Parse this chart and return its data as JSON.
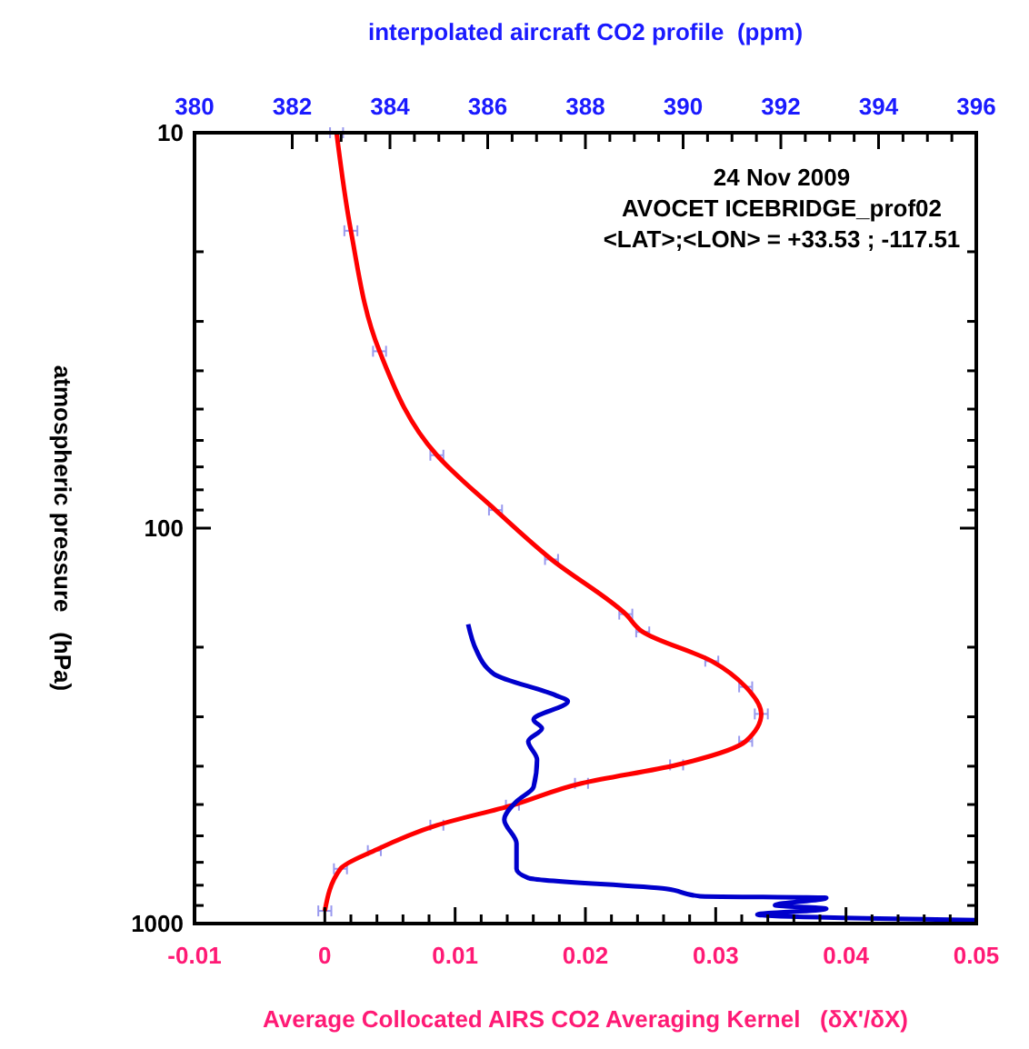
{
  "chart_data": {
    "type": "line",
    "xlabel": "Average Collocated AIRS CO2 Averaging Kernel   (δX'/δX)",
    "x2label": "interpolated aircraft CO2 profile  (ppm)",
    "ylabel": "atmospheric pressure   (hPa)",
    "annotations": [
      "24 Nov 2009",
      "AVOCET ICEBRIDGE_prof02",
      "<LAT>;<LON> = +33.53 ; -117.51"
    ],
    "log": "y",
    "grid": false,
    "line_style": "solid",
    "xlim": [
      -0.01,
      0.05
    ],
    "xticks": [
      -0.01,
      0,
      0.01,
      0.02,
      0.03,
      0.04,
      0.05,
      {
        "value": 0.002,
        "label": null
      },
      {
        "value": 0.004,
        "label": null
      },
      {
        "value": 0.006,
        "label": null
      },
      {
        "value": 0.008,
        "label": null
      },
      {
        "value": 0.012,
        "label": null
      },
      {
        "value": 0.014,
        "label": null
      },
      {
        "value": 0.016,
        "label": null
      },
      {
        "value": 0.018,
        "label": null
      },
      {
        "value": 0.022,
        "label": null
      },
      {
        "value": 0.024,
        "label": null
      },
      {
        "value": 0.026,
        "label": null
      },
      {
        "value": 0.028,
        "label": null
      },
      {
        "value": 0.032,
        "label": null
      },
      {
        "value": 0.034,
        "label": null
      },
      {
        "value": 0.036,
        "label": null
      },
      {
        "value": 0.038,
        "label": null
      },
      {
        "value": 0.042,
        "label": null
      },
      {
        "value": 0.044,
        "label": null
      },
      {
        "value": 0.046,
        "label": null
      },
      {
        "value": 0.048,
        "label": null
      }
    ],
    "x2lim": [
      380,
      396
    ],
    "x2ticks": [
      380,
      382,
      384,
      386,
      388,
      390,
      392,
      394,
      396,
      {
        "value": 382.5,
        "label": null
      },
      {
        "value": 383,
        "label": null
      },
      {
        "value": 383.5,
        "label": null
      },
      {
        "value": 384.5,
        "label": null
      },
      {
        "value": 385,
        "label": null
      },
      {
        "value": 385.5,
        "label": null
      },
      {
        "value": 386.5,
        "label": null
      },
      {
        "value": 387,
        "label": null
      },
      {
        "value": 387.5,
        "label": null
      },
      {
        "value": 388.5,
        "label": null
      },
      {
        "value": 389,
        "label": null
      },
      {
        "value": 389.5,
        "label": null
      },
      {
        "value": 390.5,
        "label": null
      },
      {
        "value": 391,
        "label": null
      },
      {
        "value": 391.5,
        "label": null
      },
      {
        "value": 392.5,
        "label": null
      },
      {
        "value": 393,
        "label": null
      },
      {
        "value": 393.5,
        "label": null
      },
      {
        "value": 394.5,
        "label": null
      },
      {
        "value": 395,
        "label": null
      },
      {
        "value": 395.5,
        "label": null
      }
    ],
    "ylim": [
      1000,
      10
    ],
    "yticks": [
      10,
      100,
      1000,
      {
        "value": 20,
        "label": null
      },
      {
        "value": 30,
        "label": null
      },
      {
        "value": 40,
        "label": null
      },
      {
        "value": 50,
        "label": null
      },
      {
        "value": 60,
        "label": null
      },
      {
        "value": 70,
        "label": null
      },
      {
        "value": 80,
        "label": null
      },
      {
        "value": 90,
        "label": null
      },
      {
        "value": 200,
        "label": null
      },
      {
        "value": 300,
        "label": null
      },
      {
        "value": 400,
        "label": null
      },
      {
        "value": 500,
        "label": null
      },
      {
        "value": 600,
        "label": null
      },
      {
        "value": 700,
        "label": null
      },
      {
        "value": 800,
        "label": null
      },
      {
        "value": 900,
        "label": null
      }
    ],
    "series": [
      {
        "color": "#ff0000",
        "x": [
          0.0009,
          0.002,
          0.0042,
          0.0086,
          0.0131,
          0.0174,
          0.0231,
          0.0244,
          0.0297,
          0.0323,
          0.0335,
          0.0323,
          0.027,
          0.0197,
          0.0144,
          0.0086,
          0.0038,
          0.0012,
          0.0
        ],
        "values": [
          10,
          17.7,
          35.7,
          65.4,
          90,
          120,
          165,
          183,
          217,
          252,
          295,
          346,
          397,
          442,
          502,
          564,
          654,
          727,
          929
        ],
        "xerrors": [
          0.0005,
          0.0005,
          0.0005,
          0.0005,
          0.0005,
          0.0005,
          0.0005,
          0.0005,
          0.0005,
          0.0005,
          0.0005,
          0.0005,
          0.0005,
          0.0005,
          0.0005,
          0.0005,
          0.0005,
          0.0005,
          0.0005
        ]
      },
      {
        "color": "#0000cc",
        "axis": "x2",
        "x": [
          385.6,
          385.77,
          385.99,
          386.13,
          387.4,
          387.64,
          386.94,
          387.11,
          386.83,
          387.01,
          386.94,
          386.59,
          386.34,
          386.59,
          386.59,
          386.83,
          389.65,
          390.35,
          392.93,
          391.88,
          392.93,
          391.52,
          396.0
        ],
        "values": [
          175,
          204,
          226,
          234,
          265,
          274,
          305,
          321,
          346,
          385,
          451,
          491,
          546,
          627,
          727,
          767,
          817,
          853,
          861,
          899,
          918,
          949,
          980
        ]
      }
    ]
  }
}
